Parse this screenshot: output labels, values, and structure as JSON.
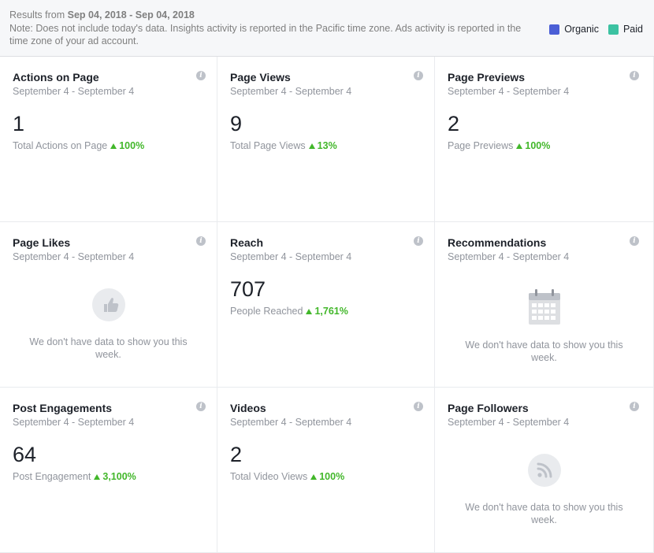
{
  "header": {
    "results_prefix": "Results from ",
    "date_range": "Sep 04, 2018 - Sep 04, 2018",
    "note": "Note: Does not include today's data. Insights activity is reported in the Pacific time zone. Ads activity is reported in the time zone of your ad account."
  },
  "legend": {
    "items": [
      {
        "label": "Organic",
        "color": "#4b5fd6"
      },
      {
        "label": "Paid",
        "color": "#3cc2a2"
      }
    ]
  },
  "cards": {
    "actions": {
      "title": "Actions on Page",
      "dates": "September 4 - September 4",
      "value": "1",
      "metric": "Total Actions on Page",
      "change": "100%"
    },
    "page_views": {
      "title": "Page Views",
      "dates": "September 4 - September 4",
      "value": "9",
      "metric": "Total Page Views",
      "change": "13%"
    },
    "page_previews": {
      "title": "Page Previews",
      "dates": "September 4 - September 4",
      "value": "2",
      "metric": "Page Previews",
      "change": "100%"
    },
    "page_likes": {
      "title": "Page Likes",
      "dates": "September 4 - September 4",
      "empty": "We don't have data to show you this week.",
      "icon": "thumbs-up-icon"
    },
    "reach": {
      "title": "Reach",
      "dates": "September 4 - September 4",
      "value": "707",
      "metric": "People Reached",
      "change": "1,761%"
    },
    "recommendations": {
      "title": "Recommendations",
      "dates": "September 4 - September 4",
      "empty": "We don't have data to show you this week.",
      "icon": "calendar-icon"
    },
    "post_engagements": {
      "title": "Post Engagements",
      "dates": "September 4 - September 4",
      "value": "64",
      "metric": "Post Engagement",
      "change": "3,100%"
    },
    "videos": {
      "title": "Videos",
      "dates": "September 4 - September 4",
      "value": "2",
      "metric": "Total Video Views",
      "change": "100%"
    },
    "page_followers": {
      "title": "Page Followers",
      "dates": "September 4 - September 4",
      "empty": "We don't have data to show you this week.",
      "icon": "rss-feed-icon"
    }
  },
  "info_glyph": "i",
  "colors": {
    "positive": "#42b72a",
    "muted": "#90949c"
  }
}
